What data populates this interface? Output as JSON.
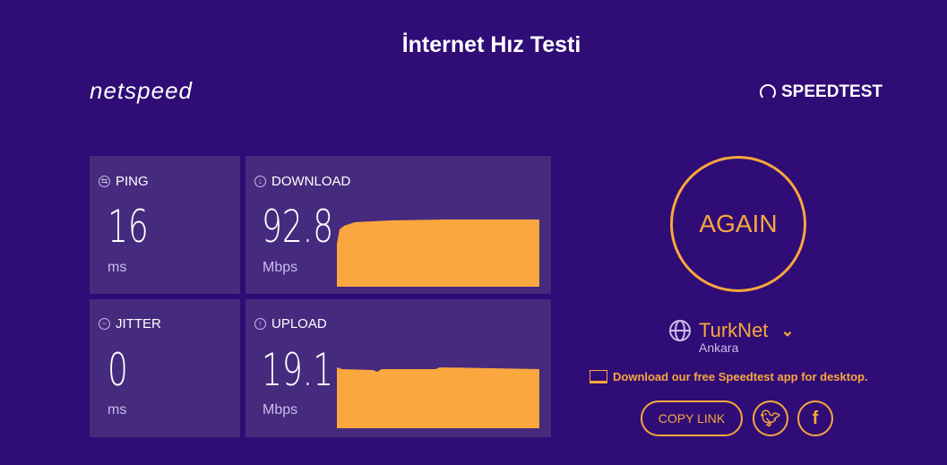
{
  "title": "İnternet Hız Testi",
  "logo": "netspeed",
  "brand": "SPEEDTEST",
  "colors": {
    "background": "#2f0c76",
    "panel": "#462a7e",
    "accent": "#f9a73e"
  },
  "ping": {
    "label": "PING",
    "value": "16",
    "unit": "ms"
  },
  "jitter": {
    "label": "JITTER",
    "value": "0",
    "unit": "ms"
  },
  "download": {
    "label": "DOWNLOAD",
    "value": "92.8",
    "unit": "Mbps"
  },
  "upload": {
    "label": "UPLOAD",
    "value": "19.1",
    "unit": "Mbps"
  },
  "again_label": "AGAIN",
  "provider": {
    "name": "TurkNet",
    "location": "Ankara"
  },
  "app_link": "Download our free Speedtest app for desktop.",
  "copy_link": "COPY LINK"
}
